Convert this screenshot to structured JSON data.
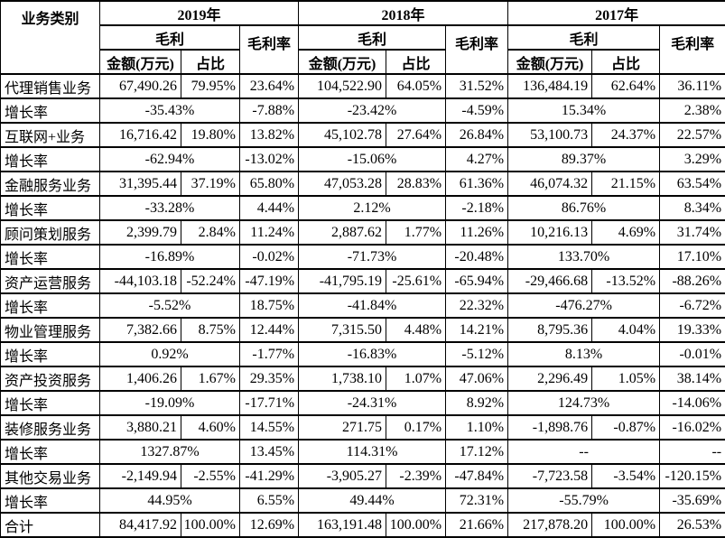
{
  "table": {
    "corner_label": "业务类别",
    "years": [
      "2019年",
      "2018年",
      "2017年"
    ],
    "labels": {
      "gross_profit": "毛利",
      "gross_margin": "毛利率",
      "amount": "金额(万元)",
      "share": "占比"
    },
    "rows": [
      {
        "type": "data",
        "label": "代理销售业务",
        "years": [
          [
            "67,490.26",
            "79.95%",
            "23.64%"
          ],
          [
            "104,522.90",
            "64.05%",
            "31.52%"
          ],
          [
            "136,484.19",
            "62.64%",
            "36.11%"
          ]
        ]
      },
      {
        "type": "growth",
        "label": "增长率",
        "years": [
          [
            "-35.43%",
            "-7.88%"
          ],
          [
            "-23.42%",
            "-4.59%"
          ],
          [
            "15.34%",
            "2.38%"
          ]
        ]
      },
      {
        "type": "data",
        "label": "互联网+业务",
        "years": [
          [
            "16,716.42",
            "19.80%",
            "13.82%"
          ],
          [
            "45,102.78",
            "27.64%",
            "26.84%"
          ],
          [
            "53,100.73",
            "24.37%",
            "22.57%"
          ]
        ]
      },
      {
        "type": "growth",
        "label": "增长率",
        "years": [
          [
            "-62.94%",
            "-13.02%"
          ],
          [
            "-15.06%",
            "4.27%"
          ],
          [
            "89.37%",
            "3.29%"
          ]
        ]
      },
      {
        "type": "data",
        "label": "金融服务业务",
        "years": [
          [
            "31,395.44",
            "37.19%",
            "65.80%"
          ],
          [
            "47,053.28",
            "28.83%",
            "61.36%"
          ],
          [
            "46,074.32",
            "21.15%",
            "63.54%"
          ]
        ]
      },
      {
        "type": "growth",
        "label": "增长率",
        "years": [
          [
            "-33.28%",
            "4.44%"
          ],
          [
            "2.12%",
            "-2.18%"
          ],
          [
            "86.76%",
            "8.34%"
          ]
        ]
      },
      {
        "type": "data",
        "label": "顾问策划服务",
        "years": [
          [
            "2,399.79",
            "2.84%",
            "11.24%"
          ],
          [
            "2,887.62",
            "1.77%",
            "11.26%"
          ],
          [
            "10,216.13",
            "4.69%",
            "31.74%"
          ]
        ]
      },
      {
        "type": "growth",
        "label": "增长率",
        "years": [
          [
            "-16.89%",
            "-0.02%"
          ],
          [
            "-71.73%",
            "-20.48%"
          ],
          [
            "133.70%",
            "17.10%"
          ]
        ]
      },
      {
        "type": "data",
        "label": "资产运营服务",
        "years": [
          [
            "-44,103.18",
            "-52.24%",
            "-47.19%"
          ],
          [
            "-41,795.19",
            "-25.61%",
            "-65.94%"
          ],
          [
            "-29,466.68",
            "-13.52%",
            "-88.26%"
          ]
        ]
      },
      {
        "type": "growth",
        "label": "增长率",
        "years": [
          [
            "-5.52%",
            "18.75%"
          ],
          [
            "-41.84%",
            "22.32%"
          ],
          [
            "-476.27%",
            "-6.72%"
          ]
        ]
      },
      {
        "type": "data",
        "label": "物业管理服务",
        "years": [
          [
            "7,382.66",
            "8.75%",
            "12.44%"
          ],
          [
            "7,315.50",
            "4.48%",
            "14.21%"
          ],
          [
            "8,795.36",
            "4.04%",
            "19.33%"
          ]
        ]
      },
      {
        "type": "growth",
        "label": "增长率",
        "years": [
          [
            "0.92%",
            "-1.77%"
          ],
          [
            "-16.83%",
            "-5.12%"
          ],
          [
            "8.13%",
            "-0.01%"
          ]
        ]
      },
      {
        "type": "data",
        "label": "资产投资服务",
        "years": [
          [
            "1,406.26",
            "1.67%",
            "29.35%"
          ],
          [
            "1,738.10",
            "1.07%",
            "47.06%"
          ],
          [
            "2,296.49",
            "1.05%",
            "38.14%"
          ]
        ]
      },
      {
        "type": "growth",
        "label": "增长率",
        "years": [
          [
            "-19.09%",
            "-17.71%"
          ],
          [
            "-24.31%",
            "8.92%"
          ],
          [
            "124.73%",
            "-14.06%"
          ]
        ]
      },
      {
        "type": "data",
        "label": "装修服务业务",
        "years": [
          [
            "3,880.21",
            "4.60%",
            "14.55%"
          ],
          [
            "271.75",
            "0.17%",
            "1.10%"
          ],
          [
            "-1,898.76",
            "-0.87%",
            "-16.02%"
          ]
        ]
      },
      {
        "type": "growth",
        "label": "增长率",
        "years": [
          [
            "1327.87%",
            "13.45%"
          ],
          [
            "114.31%",
            "17.12%"
          ],
          [
            "--",
            "--"
          ]
        ]
      },
      {
        "type": "data",
        "label": "其他交易业务",
        "years": [
          [
            "-2,149.94",
            "-2.55%",
            "-41.29%"
          ],
          [
            "-3,905.27",
            "-2.39%",
            "-47.84%"
          ],
          [
            "-7,723.58",
            "-3.54%",
            "-120.15%"
          ]
        ]
      },
      {
        "type": "growth",
        "label": "增长率",
        "years": [
          [
            "44.95%",
            "6.55%"
          ],
          [
            "49.44%",
            "72.31%"
          ],
          [
            "-55.79%",
            "-35.69%"
          ]
        ]
      },
      {
        "type": "total",
        "label": "合计",
        "years": [
          [
            "84,417.92",
            "100.00%",
            "12.69%"
          ],
          [
            "163,191.48",
            "100.00%",
            "21.66%"
          ],
          [
            "217,878.20",
            "100.00%",
            "26.53%"
          ]
        ]
      }
    ]
  },
  "colors": {
    "background": "#ffffff",
    "text": "#000000",
    "border": "#000000"
  }
}
